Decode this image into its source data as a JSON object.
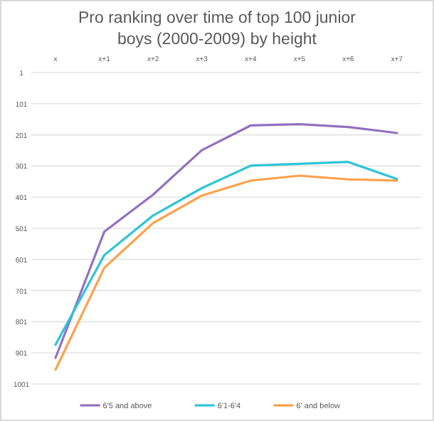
{
  "chart_data": {
    "type": "line",
    "title": "Pro ranking over time of top 100 junior boys (2000-2009) by height",
    "categories": [
      "x",
      "x+1",
      "x+2",
      "x+3",
      "x+4",
      "x+5",
      "x+6",
      "x+7"
    ],
    "series": [
      {
        "name": "6'5 and above",
        "color": "#9370c0",
        "values": [
          917,
          512,
          393,
          250,
          171,
          167,
          176,
          195
        ]
      },
      {
        "name": "6'1-6'4",
        "color": "#2ec4d6",
        "values": [
          875,
          587,
          460,
          372,
          300,
          294,
          288,
          343
        ]
      },
      {
        "name": "6' and below",
        "color": "#ffa04a",
        "values": [
          955,
          628,
          484,
          396,
          348,
          332,
          344,
          348
        ]
      }
    ],
    "ylim": [
      1001,
      1
    ],
    "yticks": [
      1,
      101,
      201,
      301,
      401,
      501,
      601,
      701,
      801,
      901,
      1001
    ],
    "grid": "y",
    "legend": "bottom",
    "marker": "none",
    "line_style": "solid"
  }
}
